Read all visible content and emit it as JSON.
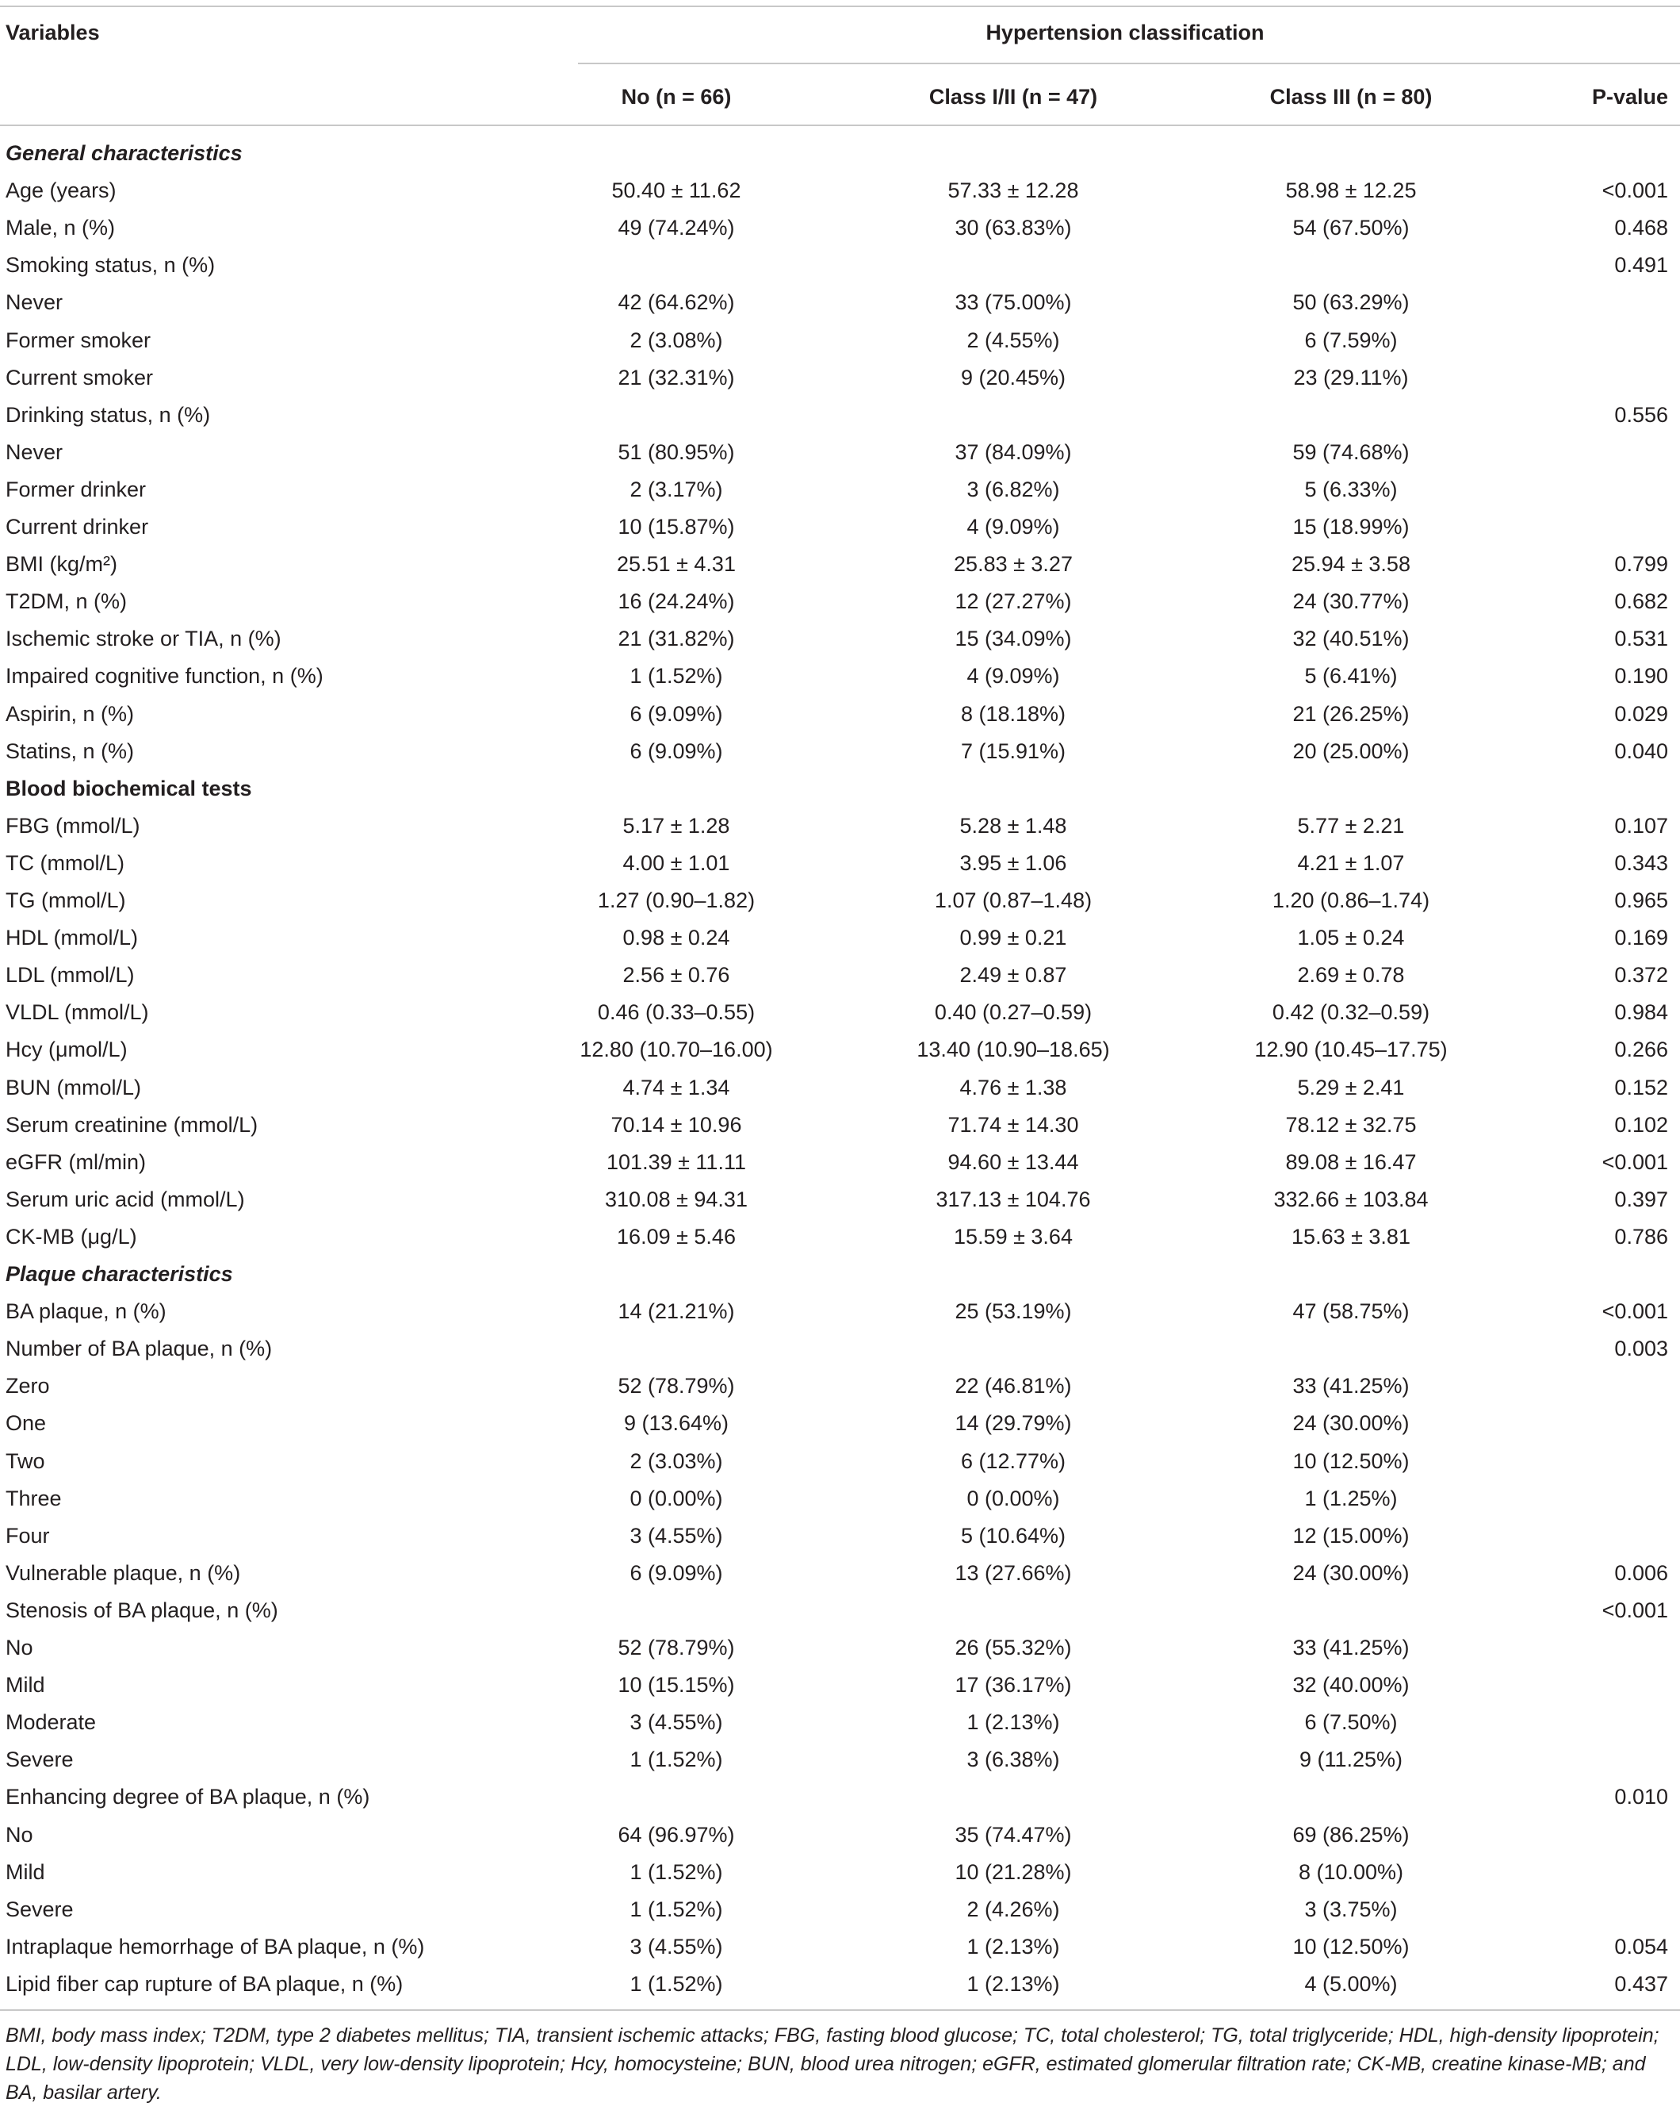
{
  "header": {
    "variables": "Variables",
    "group": "Hypertension classification",
    "columns": [
      "No (n = 66)",
      "Class I/II (n = 47)",
      "Class III (n = 80)",
      "P-value"
    ]
  },
  "rows": [
    {
      "section": "General characteristics",
      "italic": true
    },
    [
      "Age (years)",
      "50.40 ± 11.62",
      "57.33 ± 12.28",
      "58.98 ± 12.25",
      "<0.001"
    ],
    [
      "Male, n (%)",
      "49 (74.24%)",
      "30 (63.83%)",
      "54 (67.50%)",
      "0.468"
    ],
    [
      "Smoking status, n (%)",
      null,
      null,
      null,
      "0.491"
    ],
    [
      "Never",
      "42 (64.62%)",
      "33 (75.00%)",
      "50 (63.29%)",
      null
    ],
    [
      "Former smoker",
      "2 (3.08%)",
      "2 (4.55%)",
      "6 (7.59%)",
      null
    ],
    [
      "Current smoker",
      "21 (32.31%)",
      "9 (20.45%)",
      "23 (29.11%)",
      null
    ],
    [
      "Drinking status, n (%)",
      null,
      null,
      null,
      "0.556"
    ],
    [
      "Never",
      "51 (80.95%)",
      "37 (84.09%)",
      "59 (74.68%)",
      null
    ],
    [
      "Former drinker",
      "2 (3.17%)",
      "3 (6.82%)",
      "5 (6.33%)",
      null
    ],
    [
      "Current drinker",
      "10 (15.87%)",
      "4 (9.09%)",
      "15 (18.99%)",
      null
    ],
    [
      "BMI (kg/m²)",
      "25.51 ± 4.31",
      "25.83 ± 3.27",
      "25.94 ± 3.58",
      "0.799"
    ],
    [
      "T2DM, n (%)",
      "16 (24.24%)",
      "12 (27.27%)",
      "24 (30.77%)",
      "0.682"
    ],
    [
      "Ischemic stroke or TIA, n (%)",
      "21 (31.82%)",
      "15 (34.09%)",
      "32 (40.51%)",
      "0.531"
    ],
    [
      "Impaired cognitive function, n (%)",
      "1 (1.52%)",
      "4 (9.09%)",
      "5 (6.41%)",
      "0.190"
    ],
    [
      "Aspirin, n (%)",
      "6 (9.09%)",
      "8 (18.18%)",
      "21 (26.25%)",
      "0.029"
    ],
    [
      "Statins, n (%)",
      "6 (9.09%)",
      "7 (15.91%)",
      "20 (25.00%)",
      "0.040"
    ],
    {
      "section": "Blood biochemical tests",
      "italic": false
    },
    [
      "FBG (mmol/L)",
      "5.17 ± 1.28",
      "5.28 ± 1.48",
      "5.77 ± 2.21",
      "0.107"
    ],
    [
      "TC (mmol/L)",
      "4.00 ± 1.01",
      "3.95 ± 1.06",
      "4.21 ± 1.07",
      "0.343"
    ],
    [
      "TG (mmol/L)",
      "1.27 (0.90–1.82)",
      "1.07 (0.87–1.48)",
      "1.20 (0.86–1.74)",
      "0.965"
    ],
    [
      "HDL (mmol/L)",
      "0.98 ± 0.24",
      "0.99 ± 0.21",
      "1.05 ± 0.24",
      "0.169"
    ],
    [
      "LDL (mmol/L)",
      "2.56 ± 0.76",
      "2.49 ± 0.87",
      "2.69 ± 0.78",
      "0.372"
    ],
    [
      "VLDL (mmol/L)",
      "0.46 (0.33–0.55)",
      "0.40 (0.27–0.59)",
      "0.42 (0.32–0.59)",
      "0.984"
    ],
    [
      "Hcy (μmol/L)",
      "12.80 (10.70–16.00)",
      "13.40 (10.90–18.65)",
      "12.90 (10.45–17.75)",
      "0.266"
    ],
    [
      "BUN (mmol/L)",
      "4.74 ± 1.34",
      "4.76 ± 1.38",
      "5.29 ± 2.41",
      "0.152"
    ],
    [
      "Serum creatinine (mmol/L)",
      "70.14 ± 10.96",
      "71.74 ± 14.30",
      "78.12 ± 32.75",
      "0.102"
    ],
    [
      "eGFR (ml/min)",
      "101.39 ± 11.11",
      "94.60 ± 13.44",
      "89.08 ± 16.47",
      "<0.001"
    ],
    [
      "Serum uric acid (mmol/L)",
      "310.08 ± 94.31",
      "317.13 ± 104.76",
      "332.66 ± 103.84",
      "0.397"
    ],
    [
      "CK-MB (μg/L)",
      "16.09 ± 5.46",
      "15.59 ± 3.64",
      "15.63 ± 3.81",
      "0.786"
    ],
    {
      "section": "Plaque characteristics",
      "italic": true
    },
    [
      "BA plaque, n (%)",
      "14 (21.21%)",
      "25 (53.19%)",
      "47 (58.75%)",
      "<0.001"
    ],
    [
      "Number of BA plaque, n (%)",
      null,
      null,
      null,
      "0.003"
    ],
    [
      "Zero",
      "52 (78.79%)",
      "22 (46.81%)",
      "33 (41.25%)",
      null
    ],
    [
      "One",
      "9 (13.64%)",
      "14 (29.79%)",
      "24 (30.00%)",
      null
    ],
    [
      "Two",
      "2 (3.03%)",
      "6 (12.77%)",
      "10 (12.50%)",
      null
    ],
    [
      "Three",
      "0 (0.00%)",
      "0 (0.00%)",
      "1 (1.25%)",
      null
    ],
    [
      "Four",
      "3 (4.55%)",
      "5 (10.64%)",
      "12 (15.00%)",
      null
    ],
    [
      "Vulnerable plaque, n (%)",
      "6 (9.09%)",
      "13 (27.66%)",
      "24 (30.00%)",
      "0.006"
    ],
    [
      "Stenosis of BA plaque, n (%)",
      null,
      null,
      null,
      "<0.001"
    ],
    [
      "No",
      "52 (78.79%)",
      "26 (55.32%)",
      "33 (41.25%)",
      null
    ],
    [
      "Mild",
      "10 (15.15%)",
      "17 (36.17%)",
      "32 (40.00%)",
      null
    ],
    [
      "Moderate",
      "3 (4.55%)",
      "1 (2.13%)",
      "6 (7.50%)",
      null
    ],
    [
      "Severe",
      "1 (1.52%)",
      "3 (6.38%)",
      "9 (11.25%)",
      null
    ],
    [
      "Enhancing degree of BA plaque, n (%)",
      null,
      null,
      null,
      "0.010"
    ],
    [
      "No",
      "64 (96.97%)",
      "35 (74.47%)",
      "69 (86.25%)",
      null
    ],
    [
      "Mild",
      "1 (1.52%)",
      "10 (21.28%)",
      "8 (10.00%)",
      null
    ],
    [
      "Severe",
      "1 (1.52%)",
      "2 (4.26%)",
      "3 (3.75%)",
      null
    ],
    [
      "Intraplaque hemorrhage of BA plaque, n (%)",
      "3 (4.55%)",
      "1 (2.13%)",
      "10 (12.50%)",
      "0.054"
    ],
    [
      "Lipid fiber cap rupture of BA plaque, n (%)",
      "1 (1.52%)",
      "1 (2.13%)",
      "4 (5.00%)",
      "0.437"
    ]
  ],
  "footnote": "BMI, body mass index; T2DM, type 2 diabetes mellitus; TIA, transient ischemic attacks; FBG, fasting blood glucose; TC, total cholesterol; TG, total triglyceride; HDL, high-density lipoprotein; LDL, low-density lipoprotein; VLDL, very low-density lipoprotein; Hcy, homocysteine; BUN, blood urea nitrogen; eGFR, estimated glomerular filtration rate; CK-MB, creatine kinase-MB; and BA, basilar artery."
}
